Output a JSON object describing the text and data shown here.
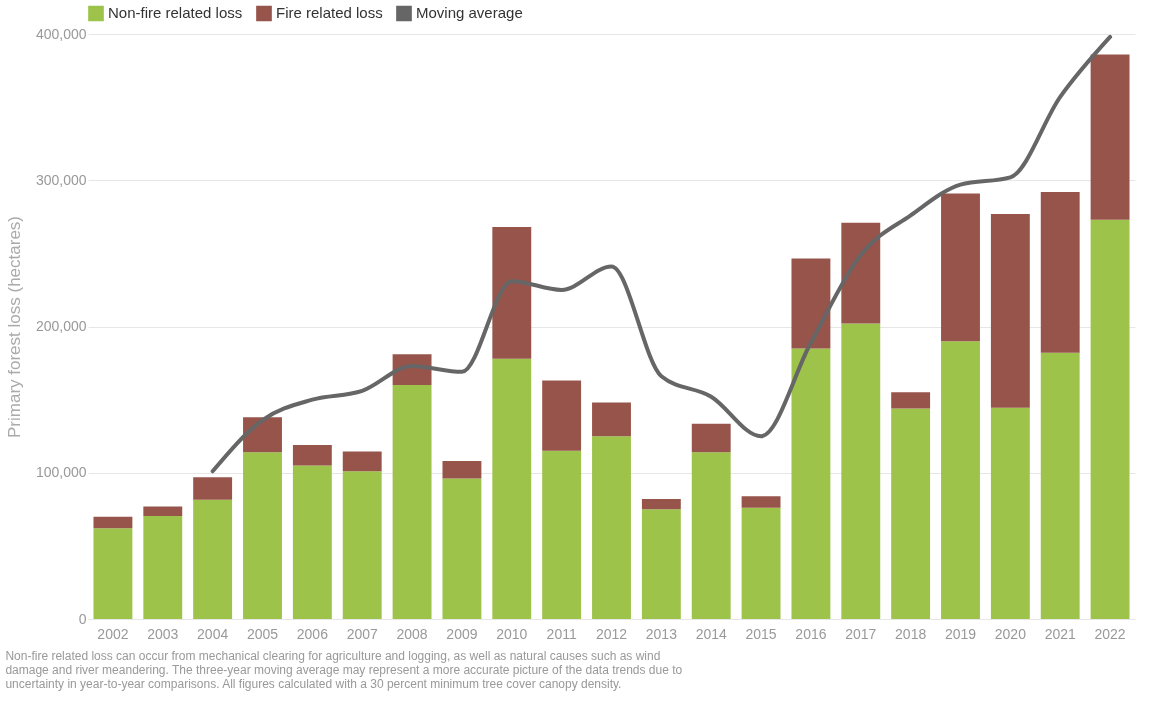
{
  "chart_data": {
    "type": "bar",
    "stacked": true,
    "ylabel": "Primary forest loss (hectares)",
    "categories": [
      "2002",
      "2003",
      "2004",
      "2005",
      "2006",
      "2007",
      "2008",
      "2009",
      "2010",
      "2011",
      "2012",
      "2013",
      "2014",
      "2015",
      "2016",
      "2017",
      "2018",
      "2019",
      "2020",
      "2021",
      "2022"
    ],
    "series": [
      {
        "name": "Non-fire related loss",
        "color": "#9dc34a",
        "values": [
          62000,
          70500,
          81500,
          114000,
          105000,
          101000,
          160000,
          96000,
          178000,
          115000,
          125000,
          75000,
          114000,
          76000,
          185000,
          202000,
          144000,
          190000,
          144500,
          182000,
          273000
        ]
      },
      {
        "name": "Fire related loss",
        "color": "#97544b",
        "values": [
          8000,
          6500,
          15500,
          24000,
          14000,
          13500,
          21000,
          12000,
          90000,
          48000,
          23000,
          7000,
          19500,
          8000,
          61500,
          69000,
          11000,
          101000,
          132500,
          110000,
          113000
        ]
      },
      {
        "name": "Moving average",
        "type": "line",
        "color": "#666666",
        "values": [
          null,
          null,
          101000,
          136000,
          150000,
          156000,
          173000,
          169000,
          231000,
          225000,
          241000,
          166000,
          152000,
          125000,
          189000,
          249000,
          276000,
          297000,
          302000,
          357000,
          398000
        ]
      }
    ],
    "ylim": [
      0,
      400000
    ],
    "yticks": [
      0,
      {
        "value": 100000,
        "label": "100,000"
      },
      {
        "value": 200000,
        "label": "200,000"
      },
      {
        "value": 300000,
        "label": "300,000"
      },
      {
        "value": 400000,
        "label": "400,000"
      }
    ],
    "grid": "y",
    "legend": "top left",
    "annotations": [
      "Non-fire related loss can occur from mechanical clearing for agriculture and logging, as well as natural causes such as wind damage and river meandering. The three-year moving average may represent a more accurate picture of the data trends due to uncertainty in year-to-year comparisons. All figures calculated with a 30 percent minimum tree cover canopy density."
    ]
  }
}
